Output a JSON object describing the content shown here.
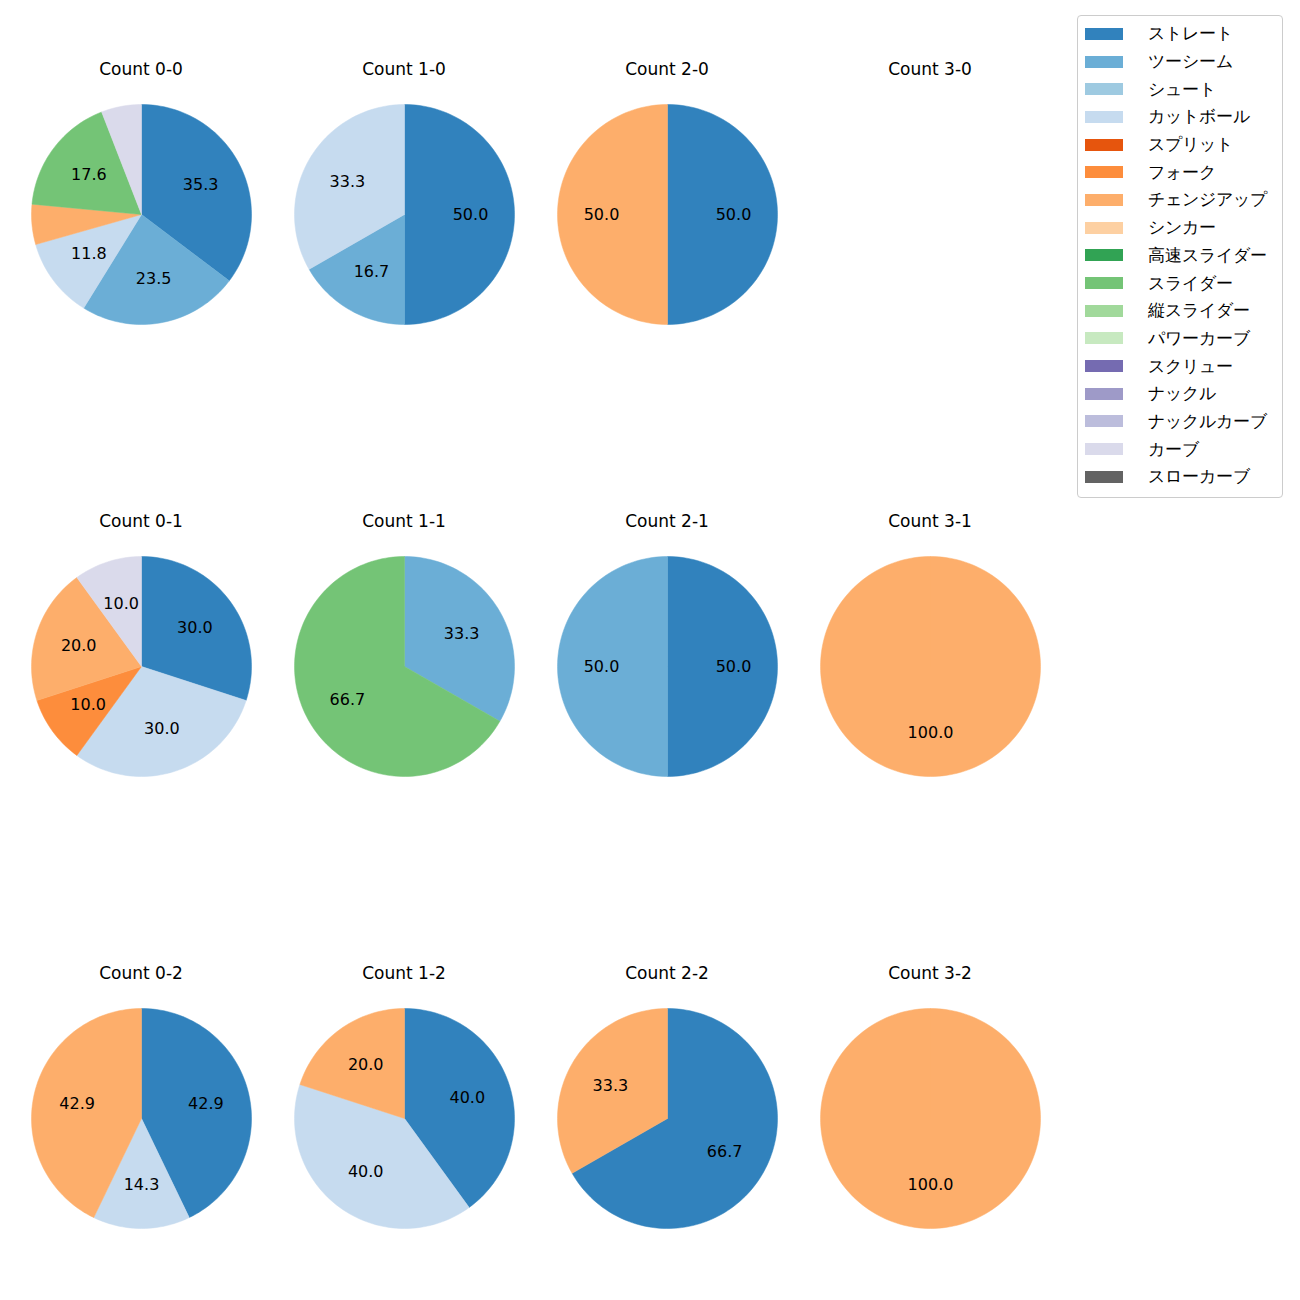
{
  "chart_data": [
    {
      "type": "pie",
      "title": "Count 0-0",
      "categories": [
        "ストレート",
        "ツーシーム",
        "カットボール",
        "チェンジアップ",
        "スライダー",
        "カーブ"
      ],
      "values": [
        35.3,
        23.5,
        11.8,
        5.9,
        17.6,
        5.9
      ],
      "value_labels": [
        "35.3",
        "23.5",
        "11.8",
        null,
        "17.6",
        null
      ],
      "colors": [
        "#3182bd",
        "#6baed6",
        "#c6dbef",
        "#fdae6b",
        "#74c476",
        "#dadaeb"
      ],
      "data_labels": true
    },
    {
      "type": "pie",
      "title": "Count 1-0",
      "categories": [
        "ストレート",
        "ツーシーム",
        "カットボール"
      ],
      "values": [
        50.0,
        16.7,
        33.3
      ],
      "value_labels": [
        "50.0",
        "16.7",
        "33.3"
      ],
      "colors": [
        "#3182bd",
        "#6baed6",
        "#c6dbef"
      ],
      "data_labels": true
    },
    {
      "type": "pie",
      "title": "Count 2-0",
      "categories": [
        "ストレート",
        "チェンジアップ"
      ],
      "values": [
        50.0,
        50.0
      ],
      "value_labels": [
        "50.0",
        "50.0"
      ],
      "colors": [
        "#3182bd",
        "#fdae6b"
      ],
      "data_labels": true
    },
    {
      "type": "pie",
      "title": "Count 3-0",
      "categories": [],
      "values": [],
      "value_labels": [],
      "colors": [],
      "data_labels": true
    },
    {
      "type": "pie",
      "title": "Count 0-1",
      "categories": [
        "ストレート",
        "カットボール",
        "フォーク",
        "チェンジアップ",
        "カーブ"
      ],
      "values": [
        30.0,
        30.0,
        10.0,
        20.0,
        10.0
      ],
      "value_labels": [
        "30.0",
        "30.0",
        "10.0",
        "20.0",
        "10.0"
      ],
      "colors": [
        "#3182bd",
        "#c6dbef",
        "#fd8d3c",
        "#fdae6b",
        "#dadaeb"
      ],
      "data_labels": true
    },
    {
      "type": "pie",
      "title": "Count 1-1",
      "categories": [
        "ツーシーム",
        "スライダー"
      ],
      "values": [
        33.3,
        66.7
      ],
      "value_labels": [
        "33.3",
        "66.7"
      ],
      "colors": [
        "#6baed6",
        "#74c476"
      ],
      "data_labels": true
    },
    {
      "type": "pie",
      "title": "Count 2-1",
      "categories": [
        "ストレート",
        "ツーシーム"
      ],
      "values": [
        50.0,
        50.0
      ],
      "value_labels": [
        "50.0",
        "50.0"
      ],
      "colors": [
        "#3182bd",
        "#6baed6"
      ],
      "data_labels": true
    },
    {
      "type": "pie",
      "title": "Count 3-1",
      "categories": [
        "チェンジアップ"
      ],
      "values": [
        100.0
      ],
      "value_labels": [
        "100.0"
      ],
      "colors": [
        "#fdae6b"
      ],
      "data_labels": true
    },
    {
      "type": "pie",
      "title": "Count 0-2",
      "categories": [
        "ストレート",
        "カットボール",
        "チェンジアップ"
      ],
      "values": [
        42.9,
        14.3,
        42.9
      ],
      "value_labels": [
        "42.9",
        "14.3",
        "42.9"
      ],
      "colors": [
        "#3182bd",
        "#c6dbef",
        "#fdae6b"
      ],
      "data_labels": true
    },
    {
      "type": "pie",
      "title": "Count 1-2",
      "categories": [
        "ストレート",
        "カットボール",
        "チェンジアップ"
      ],
      "values": [
        40.0,
        40.0,
        20.0
      ],
      "value_labels": [
        "40.0",
        "40.0",
        "20.0"
      ],
      "colors": [
        "#3182bd",
        "#c6dbef",
        "#fdae6b"
      ],
      "data_labels": true
    },
    {
      "type": "pie",
      "title": "Count 2-2",
      "categories": [
        "ストレート",
        "チェンジアップ"
      ],
      "values": [
        66.7,
        33.3
      ],
      "value_labels": [
        "66.7",
        "33.3"
      ],
      "colors": [
        "#3182bd",
        "#fdae6b"
      ],
      "data_labels": true
    },
    {
      "type": "pie",
      "title": "Count 3-2",
      "categories": [
        "チェンジアップ"
      ],
      "values": [
        100.0
      ],
      "value_labels": [
        "100.0"
      ],
      "colors": [
        "#fdae6b"
      ],
      "data_labels": true
    }
  ],
  "pitch_types": {
    "names": [
      "ストレート",
      "ツーシーム",
      "シュート",
      "カットボール",
      "スプリット",
      "フォーク",
      "チェンジアップ",
      "シンカー",
      "高速スライダー",
      "スライダー",
      "縦スライダー",
      "パワーカーブ",
      "スクリュー",
      "ナックル",
      "ナックルカーブ",
      "カーブ",
      "スローカーブ"
    ],
    "colors": [
      "#3182bd",
      "#6baed6",
      "#9ecae1",
      "#c6dbef",
      "#e6550d",
      "#fd8d3c",
      "#fdae6b",
      "#fdd0a2",
      "#31a354",
      "#74c476",
      "#a1d99b",
      "#c7e9c0",
      "#756bb1",
      "#9e9ac8",
      "#bcbddc",
      "#dadaeb",
      "#636363"
    ]
  }
}
